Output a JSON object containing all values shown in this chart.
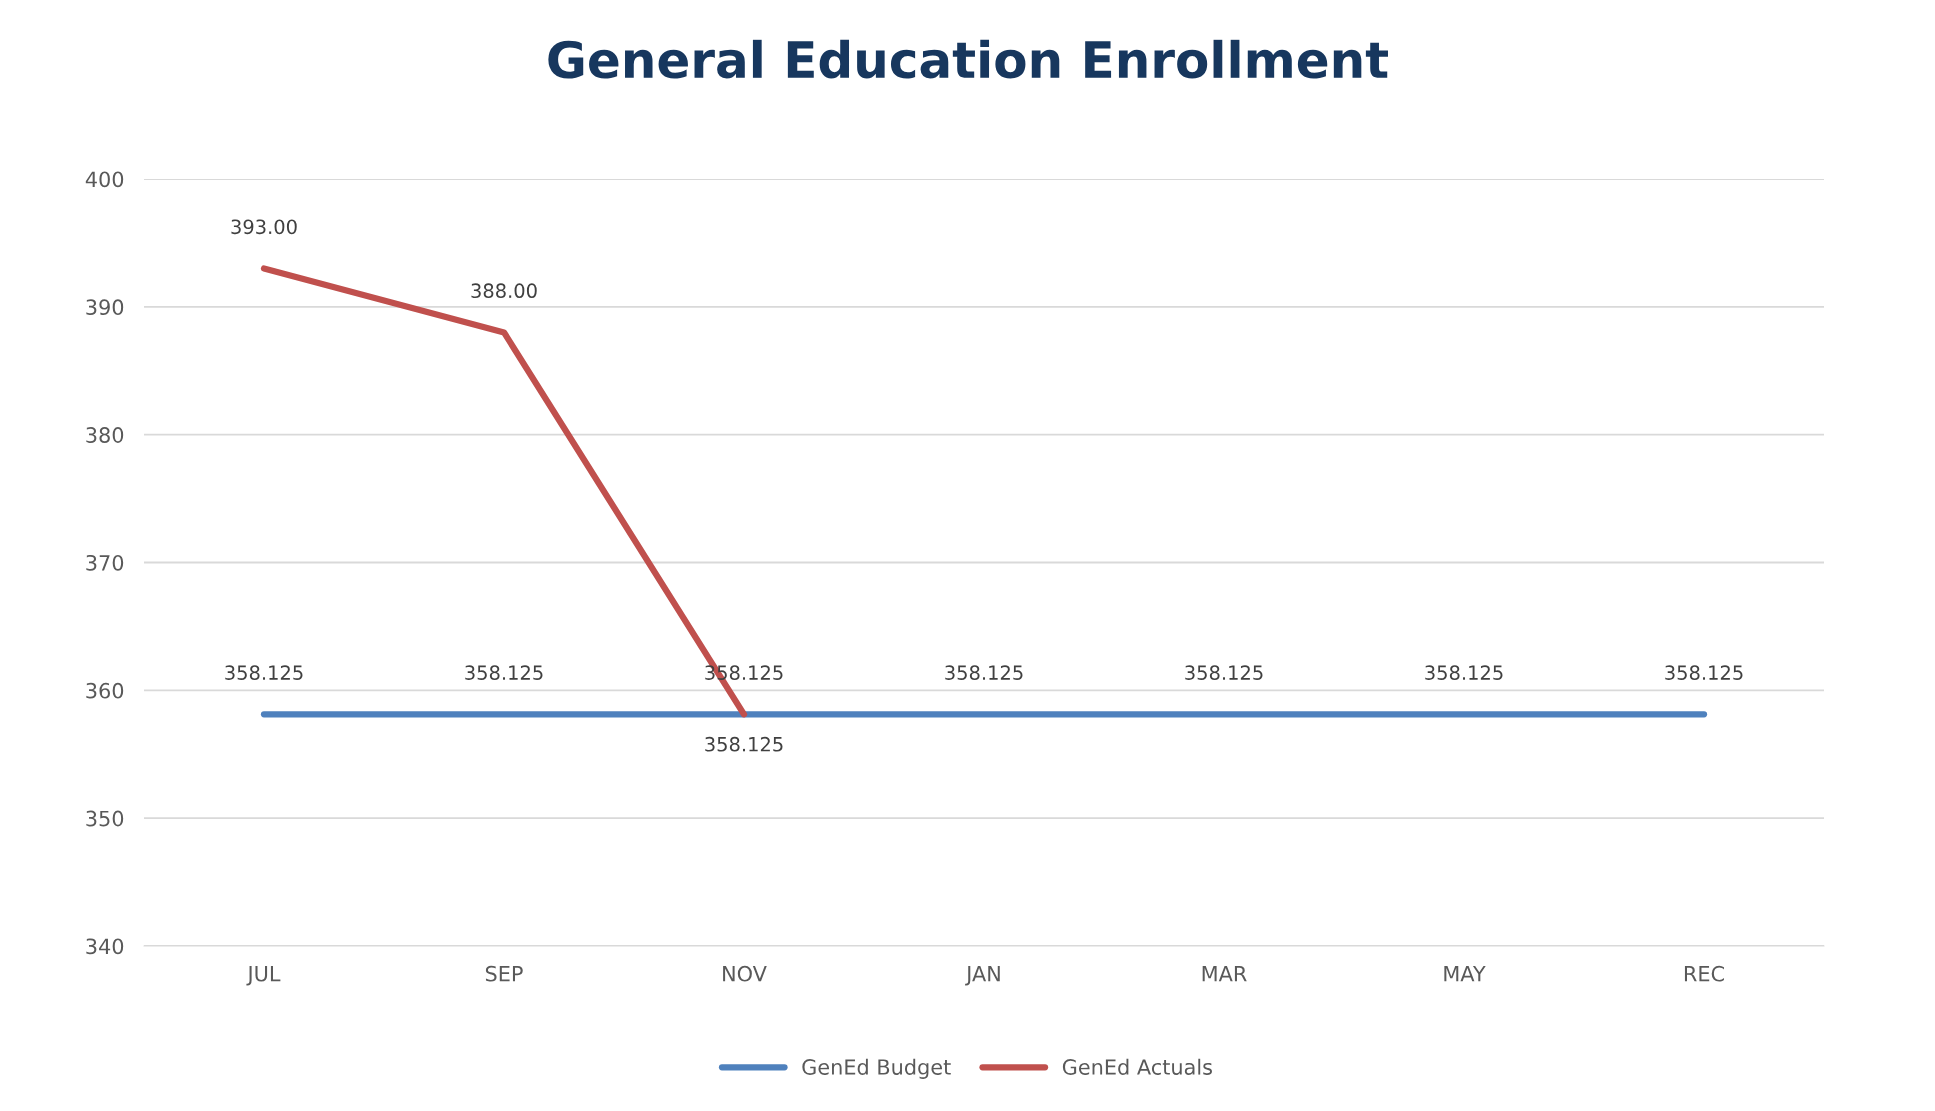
{
  "chart_data": {
    "type": "line",
    "title": "General Education Enrollment",
    "categories": [
      "JUL",
      "SEP",
      "NOV",
      "JAN",
      "MAR",
      "MAY",
      "REC"
    ],
    "series": [
      {
        "name": "GenEd Budget",
        "color": "#4f81bd",
        "values": [
          358.125,
          358.125,
          358.125,
          358.125,
          358.125,
          358.125,
          358.125
        ],
        "value_labels": [
          "358.125",
          "358.125",
          "358.125",
          "358.125",
          "358.125",
          "358.125",
          "358.125"
        ]
      },
      {
        "name": "GenEd Actuals",
        "color": "#c0504d",
        "values": [
          393,
          388,
          358.125,
          null,
          null,
          null,
          null
        ],
        "value_labels": [
          "393.00",
          "388.00",
          "358.125",
          null,
          null,
          null,
          null
        ]
      }
    ],
    "ylim": [
      340,
      400
    ],
    "yticks": [
      340,
      350,
      360,
      370,
      380,
      390,
      400
    ],
    "grid": "y",
    "legend": "bottom",
    "marker": "none",
    "line_style": "solid"
  }
}
